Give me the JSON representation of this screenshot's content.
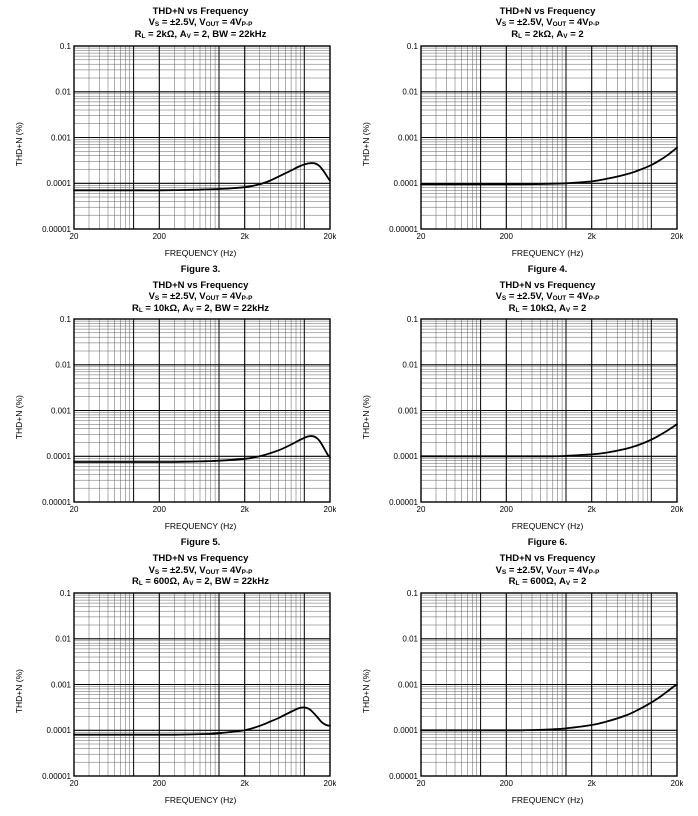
{
  "page": {
    "bg": "#ffffff",
    "text_color": "#000000",
    "grid_minor_color": "#606060",
    "grid_major_color": "#000000",
    "curve_color": "#000000"
  },
  "chart_data": [
    {
      "type": "line",
      "title": "THD+N vs Frequency",
      "conditions": [
        "V~S~ = ±2.5V, V~OUT~ = 4V~P-P~",
        "R~L~ = 2kΩ, A~V~ = 2, BW = 22kHz"
      ],
      "figure": "Figure 3.",
      "xlabel": "FREQUENCY (Hz)",
      "ylabel": "THD+N (%)",
      "x_scale": "log",
      "y_scale": "log",
      "xlim": [
        20,
        20000
      ],
      "ylim": [
        1e-05,
        0.1
      ],
      "x_ticks": [
        {
          "v": 20,
          "label": "20"
        },
        {
          "v": 200,
          "label": "200"
        },
        {
          "v": 2000,
          "label": "2k"
        },
        {
          "v": 20000,
          "label": "20k"
        }
      ],
      "y_ticks": [
        {
          "v": 0.1,
          "label": "0.1"
        },
        {
          "v": 0.01,
          "label": "0.01"
        },
        {
          "v": 0.001,
          "label": "0.001"
        },
        {
          "v": 0.0001,
          "label": "0.0001"
        },
        {
          "v": 1e-05,
          "label": "0.00001"
        }
      ],
      "points": [
        [
          20,
          7e-05
        ],
        [
          50,
          7e-05
        ],
        [
          100,
          7e-05
        ],
        [
          200,
          7e-05
        ],
        [
          500,
          7.2e-05
        ],
        [
          1000,
          7.5e-05
        ],
        [
          2000,
          8.2e-05
        ],
        [
          3000,
          9.5e-05
        ],
        [
          4000,
          0.000115
        ],
        [
          5000,
          0.00014
        ],
        [
          7000,
          0.00019
        ],
        [
          9000,
          0.00024
        ],
        [
          11000,
          0.00027
        ],
        [
          13000,
          0.000275
        ],
        [
          15000,
          0.00024
        ],
        [
          17000,
          0.00018
        ],
        [
          19000,
          0.00013
        ],
        [
          20000,
          0.000115
        ]
      ]
    },
    {
      "type": "line",
      "title": "THD+N vs Frequency",
      "conditions": [
        "V~S~ = ±2.5V, V~OUT~ = 4V~P-P~",
        "R~L~ = 2kΩ, A~V~ = 2"
      ],
      "figure": "Figure 4.",
      "xlabel": "FREQUENCY (Hz)",
      "ylabel": "THD+N (%)",
      "x_scale": "log",
      "y_scale": "log",
      "xlim": [
        20,
        20000
      ],
      "ylim": [
        1e-05,
        0.1
      ],
      "x_ticks": [
        {
          "v": 20,
          "label": "20"
        },
        {
          "v": 200,
          "label": "200"
        },
        {
          "v": 2000,
          "label": "2k"
        },
        {
          "v": 20000,
          "label": "20k"
        }
      ],
      "y_ticks": [
        {
          "v": 0.1,
          "label": "0.1"
        },
        {
          "v": 0.01,
          "label": "0.01"
        },
        {
          "v": 0.001,
          "label": "0.001"
        },
        {
          "v": 0.0001,
          "label": "0.0001"
        },
        {
          "v": 1e-05,
          "label": "0.00001"
        }
      ],
      "points": [
        [
          20,
          9.5e-05
        ],
        [
          100,
          9.5e-05
        ],
        [
          300,
          9.5e-05
        ],
        [
          700,
          9.8e-05
        ],
        [
          1000,
          0.0001
        ],
        [
          2000,
          0.00011
        ],
        [
          3000,
          0.000125
        ],
        [
          5000,
          0.000155
        ],
        [
          7000,
          0.00019
        ],
        [
          10000,
          0.00025
        ],
        [
          13000,
          0.00033
        ],
        [
          16000,
          0.00043
        ],
        [
          20000,
          0.0006
        ]
      ]
    },
    {
      "type": "line",
      "title": "THD+N vs Frequency",
      "conditions": [
        "V~S~ = ±2.5V, V~OUT~ = 4V~P-P~",
        "R~L~ = 10kΩ, A~V~ = 2, BW = 22kHz"
      ],
      "figure": "Figure 5.",
      "xlabel": "FREQUENCY (Hz)",
      "ylabel": "THD+N (%)",
      "x_scale": "log",
      "y_scale": "log",
      "xlim": [
        20,
        20000
      ],
      "ylim": [
        1e-05,
        0.1
      ],
      "x_ticks": [
        {
          "v": 20,
          "label": "20"
        },
        {
          "v": 200,
          "label": "200"
        },
        {
          "v": 2000,
          "label": "2k"
        },
        {
          "v": 20000,
          "label": "20k"
        }
      ],
      "y_ticks": [
        {
          "v": 0.1,
          "label": "0.1"
        },
        {
          "v": 0.01,
          "label": "0.01"
        },
        {
          "v": 0.001,
          "label": "0.001"
        },
        {
          "v": 0.0001,
          "label": "0.0001"
        },
        {
          "v": 1e-05,
          "label": "0.00001"
        }
      ],
      "points": [
        [
          20,
          7.5e-05
        ],
        [
          100,
          7.5e-05
        ],
        [
          300,
          7.5e-05
        ],
        [
          700,
          7.8e-05
        ],
        [
          1000,
          8e-05
        ],
        [
          2000,
          8.8e-05
        ],
        [
          3000,
          0.0001
        ],
        [
          5000,
          0.000135
        ],
        [
          7000,
          0.00018
        ],
        [
          9000,
          0.00023
        ],
        [
          11000,
          0.00027
        ],
        [
          13000,
          0.00027
        ],
        [
          15000,
          0.00022
        ],
        [
          17000,
          0.00015
        ],
        [
          19000,
          0.000105
        ],
        [
          20000,
          9.5e-05
        ]
      ]
    },
    {
      "type": "line",
      "title": "THD+N vs Frequency",
      "conditions": [
        "V~S~ = ±2.5V, V~OUT~ = 4V~P-P~",
        "R~L~ = 10kΩ, A~V~ = 2"
      ],
      "figure": "Figure 6.",
      "xlabel": "FREQUENCY (Hz)",
      "ylabel": "THD+N (%)",
      "x_scale": "log",
      "y_scale": "log",
      "xlim": [
        20,
        20000
      ],
      "ylim": [
        1e-05,
        0.1
      ],
      "x_ticks": [
        {
          "v": 20,
          "label": "20"
        },
        {
          "v": 200,
          "label": "200"
        },
        {
          "v": 2000,
          "label": "2k"
        },
        {
          "v": 20000,
          "label": "20k"
        }
      ],
      "y_ticks": [
        {
          "v": 0.1,
          "label": "0.1"
        },
        {
          "v": 0.01,
          "label": "0.01"
        },
        {
          "v": 0.001,
          "label": "0.001"
        },
        {
          "v": 0.0001,
          "label": "0.0001"
        },
        {
          "v": 1e-05,
          "label": "0.00001"
        }
      ],
      "points": [
        [
          20,
          0.0001
        ],
        [
          100,
          0.0001
        ],
        [
          300,
          0.0001
        ],
        [
          700,
          0.0001
        ],
        [
          1000,
          0.000102
        ],
        [
          2000,
          0.00011
        ],
        [
          3000,
          0.00012
        ],
        [
          5000,
          0.000145
        ],
        [
          7000,
          0.000175
        ],
        [
          10000,
          0.00023
        ],
        [
          13000,
          0.0003
        ],
        [
          16000,
          0.00038
        ],
        [
          20000,
          0.0005
        ]
      ]
    },
    {
      "type": "line",
      "title": "THD+N vs Frequency",
      "conditions": [
        "V~S~ = ±2.5V, V~OUT~ = 4V~P-P~",
        "R~L~ = 600Ω, A~V~ = 2, BW = 22kHz"
      ],
      "xlabel": "FREQUENCY (Hz)",
      "ylabel": "THD+N (%)",
      "x_scale": "log",
      "y_scale": "log",
      "xlim": [
        20,
        20000
      ],
      "ylim": [
        1e-05,
        0.1
      ],
      "x_ticks": [
        {
          "v": 20,
          "label": "20"
        },
        {
          "v": 200,
          "label": "200"
        },
        {
          "v": 2000,
          "label": "2k"
        },
        {
          "v": 20000,
          "label": "20k"
        }
      ],
      "y_ticks": [
        {
          "v": 0.1,
          "label": "0.1"
        },
        {
          "v": 0.01,
          "label": "0.01"
        },
        {
          "v": 0.001,
          "label": "0.001"
        },
        {
          "v": 0.0001,
          "label": "0.0001"
        },
        {
          "v": 1e-05,
          "label": "0.00001"
        }
      ],
      "points": [
        [
          20,
          8e-05
        ],
        [
          100,
          8e-05
        ],
        [
          300,
          8e-05
        ],
        [
          700,
          8.3e-05
        ],
        [
          1000,
          8.6e-05
        ],
        [
          2000,
          0.0001
        ],
        [
          3000,
          0.000125
        ],
        [
          4000,
          0.000155
        ],
        [
          5000,
          0.000185
        ],
        [
          6000,
          0.00022
        ],
        [
          7500,
          0.00027
        ],
        [
          9000,
          0.00031
        ],
        [
          10500,
          0.00031
        ],
        [
          12000,
          0.00027
        ],
        [
          14000,
          0.0002
        ],
        [
          16000,
          0.00015
        ],
        [
          18000,
          0.00013
        ],
        [
          20000,
          0.000125
        ]
      ]
    },
    {
      "type": "line",
      "title": "THD+N vs Frequency",
      "conditions": [
        "V~S~ = ±2.5V, V~OUT~ = 4V~P-P~",
        "R~L~ = 600Ω, A~V~ = 2"
      ],
      "xlabel": "FREQUENCY (Hz)",
      "ylabel": "THD+N (%)",
      "x_scale": "log",
      "y_scale": "log",
      "xlim": [
        20,
        20000
      ],
      "ylim": [
        1e-05,
        0.1
      ],
      "x_ticks": [
        {
          "v": 20,
          "label": "20"
        },
        {
          "v": 200,
          "label": "200"
        },
        {
          "v": 2000,
          "label": "2k"
        },
        {
          "v": 20000,
          "label": "20k"
        }
      ],
      "y_ticks": [
        {
          "v": 0.1,
          "label": "0.1"
        },
        {
          "v": 0.01,
          "label": "0.01"
        },
        {
          "v": 0.001,
          "label": "0.001"
        },
        {
          "v": 0.0001,
          "label": "0.0001"
        },
        {
          "v": 1e-05,
          "label": "0.00001"
        }
      ],
      "points": [
        [
          20,
          0.0001
        ],
        [
          100,
          0.0001
        ],
        [
          300,
          0.0001
        ],
        [
          700,
          0.000105
        ],
        [
          1000,
          0.00011
        ],
        [
          2000,
          0.00013
        ],
        [
          3000,
          0.000155
        ],
        [
          5000,
          0.00021
        ],
        [
          7000,
          0.00028
        ],
        [
          9000,
          0.00036
        ],
        [
          12000,
          0.0005
        ],
        [
          15000,
          0.00068
        ],
        [
          18000,
          0.00088
        ],
        [
          20000,
          0.001
        ]
      ]
    }
  ]
}
